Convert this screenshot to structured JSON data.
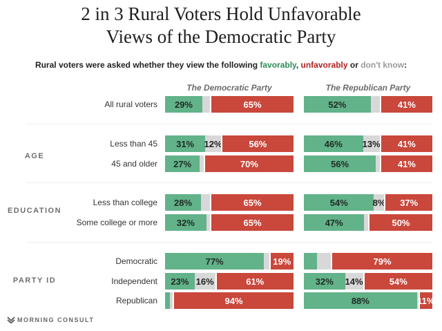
{
  "header": {
    "title_line1": "2 in 3 Rural Voters Hold Unfavorable",
    "title_line2": "Views of the Democratic Party",
    "subtitle_prefix": "Rural voters were asked whether they view the following ",
    "subtitle_fav": "favorably",
    "subtitle_sep": ", ",
    "subtitle_unfav": "unfavorably",
    "subtitle_or": " or ",
    "subtitle_dk": "don't know",
    "subtitle_end": ":"
  },
  "colors": {
    "favorable": "#62b28a",
    "dont_know": "#d8d8d8",
    "unfavorable": "#c9473b"
  },
  "footer": {
    "logo_text": "MORNING CONSULT",
    "logo_icon": "morning-consult-logo-icon"
  },
  "chart_data": {
    "type": "bar",
    "orientation": "horizontal-stacked-100",
    "title": "2 in 3 Rural Voters Hold Unfavorable Views of the Democratic Party",
    "subtitle": "Rural voters were asked whether they view the following favorably, unfavorably or don't know:",
    "legend": [
      "favorably",
      "unfavorably",
      "don't know"
    ],
    "panels": [
      "The Democratic Party",
      "The Republican Party"
    ],
    "groups": [
      {
        "name": "",
        "rows": [
          "All rural voters"
        ]
      },
      {
        "name": "AGE",
        "rows": [
          "Less than 45",
          "45 and older"
        ]
      },
      {
        "name": "EDUCATION",
        "rows": [
          "Less than college",
          "Some college or more"
        ]
      },
      {
        "name": "PARTY ID",
        "rows": [
          "Democratic",
          "Independent",
          "Republican"
        ]
      }
    ],
    "categories": [
      "All rural voters",
      "Less than 45",
      "45 and older",
      "Less than college",
      "Some college or more",
      "Democratic",
      "Independent",
      "Republican"
    ],
    "series": [
      {
        "panel": "The Democratic Party",
        "favorable": [
          29,
          31,
          27,
          28,
          32,
          77,
          23,
          4
        ],
        "dont_know": [
          6,
          12,
          3,
          7,
          3,
          4,
          16,
          2
        ],
        "unfavorable": [
          65,
          56,
          70,
          65,
          65,
          19,
          61,
          94
        ],
        "labels": [
          [
            "29%",
            "",
            "65%"
          ],
          [
            "31%",
            "12%",
            "56%"
          ],
          [
            "27%",
            "",
            "70%"
          ],
          [
            "28%",
            "",
            "65%"
          ],
          [
            "32%",
            "",
            "65%"
          ],
          [
            "77%",
            "",
            "19%"
          ],
          [
            "23%",
            "16%",
            "61%"
          ],
          [
            "",
            "",
            "94%"
          ]
        ]
      },
      {
        "panel": "The Republican Party",
        "favorable": [
          52,
          46,
          56,
          54,
          47,
          10,
          32,
          88
        ],
        "dont_know": [
          7,
          13,
          3,
          8,
          3,
          11,
          14,
          1
        ],
        "unfavorable": [
          41,
          41,
          41,
          37,
          50,
          79,
          54,
          11
        ],
        "labels": [
          [
            "52%",
            "",
            "41%"
          ],
          [
            "46%",
            "13%",
            "41%"
          ],
          [
            "56%",
            "",
            "41%"
          ],
          [
            "54%",
            "8%",
            "37%"
          ],
          [
            "47%",
            "",
            "50%"
          ],
          [
            "",
            "",
            "79%"
          ],
          [
            "32%",
            "14%",
            "54%"
          ],
          [
            "88%",
            "",
            "11%"
          ]
        ]
      }
    ]
  }
}
